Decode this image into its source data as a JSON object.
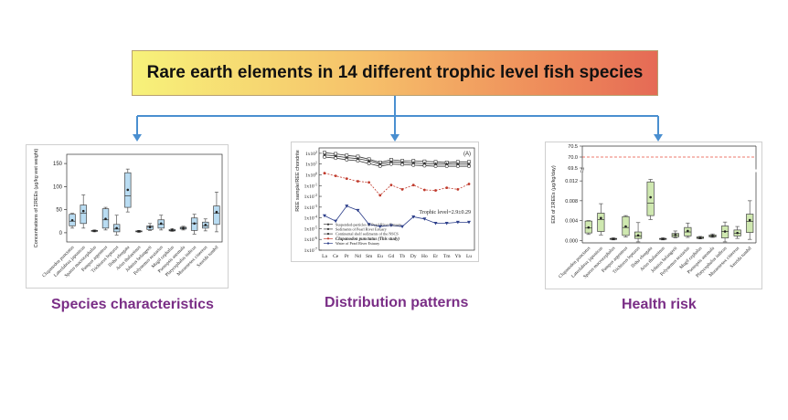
{
  "title": "Rare earth elements in 14 different trophic level fish species",
  "panels": {
    "species": {
      "caption": "Species characteristics"
    },
    "distribution": {
      "caption": "Distribution patterns"
    },
    "health": {
      "caption": "Health risk"
    }
  },
  "colors": {
    "arrow": "#4a8fd0",
    "caption": "#7a2e86",
    "box_species": "#b9dcf2",
    "box_health": "#cfe8b0"
  },
  "chart_data": [
    {
      "type": "box",
      "ylabel": "Concentrations of ΣREEs (μg/kg wet weight)",
      "ylim": [
        -20,
        170
      ],
      "yticks": [
        0,
        50,
        100,
        150
      ],
      "categories": [
        "Clupanodon punctatus",
        "Lateolabrax japonicus",
        "Sparus macrocephalus",
        "Pampus argenteus",
        "Trichiurus lepturus",
        "Ilisha elongata",
        "Arius thalassinus",
        "Johnius belangerii",
        "Polynemus sextarius",
        "Mugil cephalus",
        "Psenopsis anomala",
        "Platycephalus indicus",
        "Muraenesox cinereus",
        "Saurida tumbil"
      ],
      "boxes": [
        {
          "min": 10,
          "q1": 15,
          "median": 25,
          "q3": 40,
          "max": 42,
          "mean": 27
        },
        {
          "min": 10,
          "q1": 20,
          "median": 42,
          "q3": 60,
          "max": 82,
          "mean": 47
        },
        {
          "min": 2,
          "q1": 3,
          "median": 4,
          "q3": 5,
          "max": 6,
          "mean": 4
        },
        {
          "min": 6,
          "q1": 10,
          "median": 28,
          "q3": 52,
          "max": 55,
          "mean": 30
        },
        {
          "min": -5,
          "q1": 2,
          "median": 8,
          "q3": 18,
          "max": 38,
          "mean": 10
        },
        {
          "min": 45,
          "q1": 55,
          "median": 80,
          "q3": 130,
          "max": 138,
          "mean": 93
        },
        {
          "min": 1,
          "q1": 2,
          "median": 3,
          "q3": 4,
          "max": 5,
          "mean": 3
        },
        {
          "min": 5,
          "q1": 7,
          "median": 12,
          "q3": 15,
          "max": 20,
          "mean": 12
        },
        {
          "min": 6,
          "q1": 10,
          "median": 18,
          "q3": 28,
          "max": 38,
          "mean": 20
        },
        {
          "min": 3,
          "q1": 4,
          "median": 5,
          "q3": 7,
          "max": 9,
          "mean": 6
        },
        {
          "min": 6,
          "q1": 8,
          "median": 10,
          "q3": 12,
          "max": 14,
          "mean": 10
        },
        {
          "min": -3,
          "q1": 5,
          "median": 20,
          "q3": 32,
          "max": 40,
          "mean": 20
        },
        {
          "min": 4,
          "q1": 10,
          "median": 15,
          "q3": 23,
          "max": 30,
          "mean": 17
        },
        {
          "min": 2,
          "q1": 18,
          "median": 42,
          "q3": 58,
          "max": 88,
          "mean": 45
        }
      ]
    },
    {
      "type": "line",
      "panel_label": "(A)",
      "ylabel": "REE sample/REE chondrite",
      "x": [
        "La",
        "Ce",
        "Pr",
        "Nd",
        "Sm",
        "Eu",
        "Gd",
        "Tb",
        "Dy",
        "Ho",
        "Er",
        "Tm",
        "Yb",
        "Lu"
      ],
      "yscale": "log",
      "ylim": [
        -7,
        2.5
      ],
      "ytick_exps": [
        -7,
        -6,
        -5,
        -4,
        -3,
        -2,
        -1,
        0,
        1,
        2
      ],
      "annotation": "Trophic level=2.9±0.29",
      "series": [
        {
          "name": "Suspended-particles of Pearl River Estuary",
          "color": "#333333",
          "marker": "square",
          "log_values": [
            2.05,
            1.95,
            1.8,
            1.7,
            1.45,
            1.15,
            1.4,
            1.3,
            1.3,
            1.25,
            1.2,
            1.15,
            1.2,
            1.2
          ]
        },
        {
          "name": "Sediments of Pearl River Estuary",
          "color": "#333333",
          "marker": "triangle",
          "log_values": [
            1.85,
            1.75,
            1.6,
            1.5,
            1.3,
            1.0,
            1.2,
            1.15,
            1.1,
            1.05,
            1.0,
            1.0,
            1.0,
            1.0
          ]
        },
        {
          "name": "Continental shelf sediments of the NSCS",
          "color": "#333333",
          "marker": "circle",
          "log_values": [
            1.65,
            1.55,
            1.4,
            1.3,
            1.05,
            0.8,
            1.0,
            0.95,
            0.9,
            0.85,
            0.8,
            0.8,
            0.8,
            0.8
          ]
        },
        {
          "name": "Clupanodon punctatus (This study)",
          "color": "#c0392b",
          "marker": "dot",
          "log_values": [
            0.15,
            -0.1,
            -0.35,
            -0.6,
            -0.7,
            -1.9,
            -0.95,
            -1.35,
            -0.95,
            -1.4,
            -1.45,
            -1.2,
            -1.35,
            -0.85
          ]
        },
        {
          "name": "Water of Pearl River Estuary",
          "color": "#2c3e8a",
          "marker": "triangle-down",
          "log_values": [
            -3.8,
            -4.3,
            -2.9,
            -3.3,
            -4.6,
            -4.8,
            -4.7,
            -4.8,
            -3.9,
            -4.1,
            -4.5,
            -4.5,
            -4.4,
            -4.4
          ]
        }
      ]
    },
    {
      "type": "box",
      "ylabel": "EDI of ΣREEs (μg/kg/day)",
      "upper_ylim": [
        69.5,
        70.5
      ],
      "upper_yticks": [
        69.5,
        70.0,
        70.5
      ],
      "reference_line": 70.0,
      "lower_ylim": [
        -0.0005,
        0.0135
      ],
      "lower_yticks": [
        0.0,
        0.004,
        0.008,
        0.012
      ],
      "categories": [
        "Clupanodon punctatus",
        "Lateolabrax japonicus",
        "Sparus macrocephalus",
        "Pampus argenteus",
        "Trichiurus lepturus",
        "Ilisha elongata",
        "Arius thalassinus",
        "Johnius belangerii",
        "Polynemus sextarius",
        "Mugil cephalus",
        "Psenopsis anomala",
        "Platycephalus indicus",
        "Muraenesox cinereus",
        "Saurida tumbil"
      ],
      "boxes": [
        {
          "min": 0.0012,
          "q1": 0.0015,
          "median": 0.0025,
          "q3": 0.0039,
          "max": 0.004,
          "mean": 0.0026
        },
        {
          "min": 0.0011,
          "q1": 0.0018,
          "median": 0.0042,
          "q3": 0.0055,
          "max": 0.0074,
          "mean": 0.0045
        },
        {
          "min": 0.0001,
          "q1": 0.0002,
          "median": 0.0003,
          "q3": 0.0004,
          "max": 0.0005,
          "mean": 0.0003
        },
        {
          "min": 0.0007,
          "q1": 0.001,
          "median": 0.0026,
          "q3": 0.0048,
          "max": 0.005,
          "mean": 0.0028
        },
        {
          "min": -0.0003,
          "q1": 0.0004,
          "median": 0.0009,
          "q3": 0.0017,
          "max": 0.0036,
          "mean": 0.001
        },
        {
          "min": 0.0042,
          "q1": 0.005,
          "median": 0.0075,
          "q3": 0.0118,
          "max": 0.0123,
          "mean": 0.0087
        },
        {
          "min": 0.0001,
          "q1": 0.0002,
          "median": 0.0003,
          "q3": 0.0004,
          "max": 0.0005,
          "mean": 0.0003
        },
        {
          "min": 0.0005,
          "q1": 0.0007,
          "median": 0.0011,
          "q3": 0.0014,
          "max": 0.0019,
          "mean": 0.0011
        },
        {
          "min": 0.0006,
          "q1": 0.0009,
          "median": 0.0017,
          "q3": 0.0026,
          "max": 0.0035,
          "mean": 0.0019
        },
        {
          "min": 0.0003,
          "q1": 0.0004,
          "median": 0.0005,
          "q3": 0.0007,
          "max": 0.0008,
          "mean": 0.0005
        },
        {
          "min": 0.0006,
          "q1": 0.0007,
          "median": 0.0009,
          "q3": 0.0011,
          "max": 0.0013,
          "mean": 0.0009
        },
        {
          "min": -0.0003,
          "q1": 0.0005,
          "median": 0.0018,
          "q3": 0.0029,
          "max": 0.0037,
          "mean": 0.0018
        },
        {
          "min": 0.0004,
          "q1": 0.0009,
          "median": 0.0014,
          "q3": 0.0021,
          "max": 0.0028,
          "mean": 0.0015
        },
        {
          "min": 0.0002,
          "q1": 0.0016,
          "median": 0.0038,
          "q3": 0.0053,
          "max": 0.008,
          "mean": 0.0041
        }
      ]
    }
  ]
}
